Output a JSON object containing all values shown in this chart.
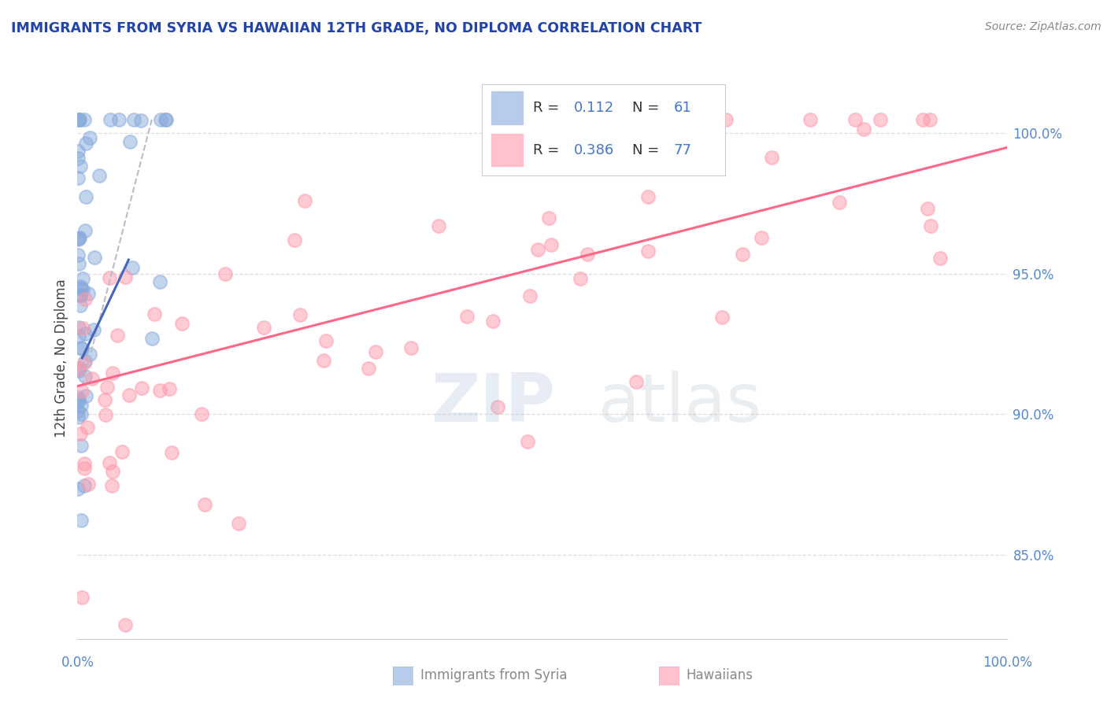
{
  "title": "IMMIGRANTS FROM SYRIA VS HAWAIIAN 12TH GRADE, NO DIPLOMA CORRELATION CHART",
  "source": "Source: ZipAtlas.com",
  "ylabel": "12th Grade, No Diploma",
  "xlim": [
    0.0,
    100.0
  ],
  "ylim": [
    82.0,
    102.0
  ],
  "y_ticks": [
    85.0,
    90.0,
    95.0,
    100.0
  ],
  "legend_R1": "0.112",
  "legend_N1": "61",
  "legend_R2": "0.386",
  "legend_N2": "77",
  "blue_color": "#88AADD",
  "pink_color": "#FF99AA",
  "title_color": "#2244AA",
  "source_color": "#888888",
  "axis_tick_color": "#5588CC",
  "blue_line_color": "#4466BB",
  "pink_line_color": "#FF6688",
  "gray_line_color": "#BBBBCC",
  "legend_text_color": "#333333",
  "legend_value_color": "#4477CC",
  "watermark_zip_color": "#AABBDD",
  "watermark_atlas_color": "#99AACC",
  "grid_color": "#DDDDDD",
  "bottom_label_color": "#888888",
  "blue_line_x0": 0.5,
  "blue_line_x1": 5.5,
  "blue_line_y0": 92.0,
  "blue_line_y1": 95.5,
  "pink_line_x0": 0.0,
  "pink_line_x1": 100.0,
  "pink_line_y0": 91.0,
  "pink_line_y1": 99.5,
  "gray_line_x0": 0.5,
  "gray_line_x1": 8.0,
  "gray_line_y0": 91.0,
  "gray_line_y1": 100.5
}
